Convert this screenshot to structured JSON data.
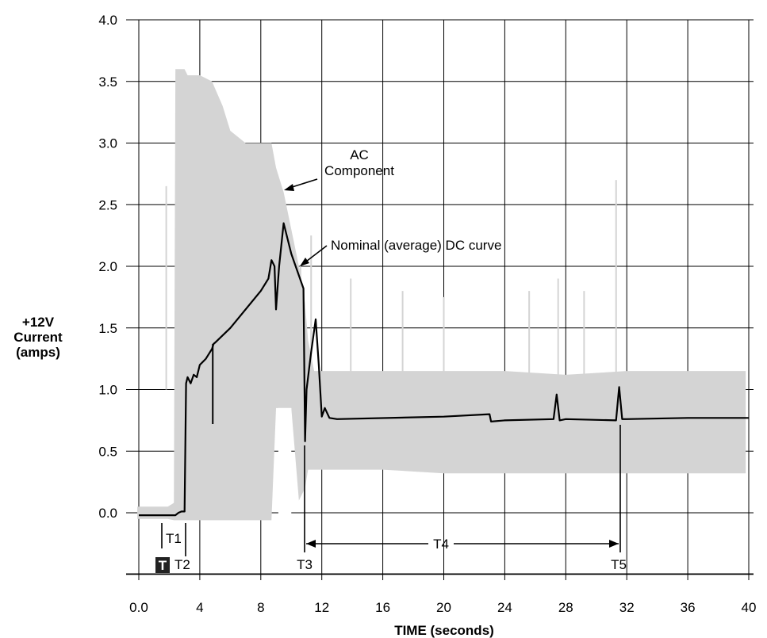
{
  "chart_data": {
    "type": "line",
    "xlabel": "TIME (seconds)",
    "ylabel": [
      "+12V",
      "Current",
      "(amps)"
    ],
    "xlim": [
      0,
      40
    ],
    "ylim": [
      -0.5,
      4.0
    ],
    "grid": true,
    "x_ticks": [
      {
        "value": 0,
        "label": "0.0"
      },
      {
        "value": 4,
        "label": "4"
      },
      {
        "value": 8,
        "label": "8"
      },
      {
        "value": 12,
        "label": "12"
      },
      {
        "value": 16,
        "label": "16"
      },
      {
        "value": 20,
        "label": "20"
      },
      {
        "value": 24,
        "label": "24"
      },
      {
        "value": 28,
        "label": "28"
      },
      {
        "value": 32,
        "label": "32"
      },
      {
        "value": 36,
        "label": "36"
      },
      {
        "value": 40,
        "label": "40"
      }
    ],
    "y_ticks": [
      {
        "value": 0.0,
        "label": "0.0"
      },
      {
        "value": 0.5,
        "label": "0.5"
      },
      {
        "value": 1.0,
        "label": "1.0"
      },
      {
        "value": 1.5,
        "label": "1.5"
      },
      {
        "value": 2.0,
        "label": "2.0"
      },
      {
        "value": 2.5,
        "label": "2.5"
      },
      {
        "value": 3.0,
        "label": "3.0"
      },
      {
        "value": 3.5,
        "label": "3.5"
      },
      {
        "value": 4.0,
        "label": "4.0"
      }
    ],
    "series": [
      {
        "name": "AC Component",
        "style": "band",
        "color": "#d4d4d4",
        "x": [
          -0.1,
          1.6,
          1.9,
          2.3,
          2.4,
          3.0,
          3.2,
          4.0,
          4.8,
          5.5,
          6.0,
          7.0,
          8.0,
          8.7,
          9.0,
          9.5,
          10.0,
          10.5,
          10.9,
          11.1,
          11.5,
          12.0,
          16.0,
          20.0,
          24.0,
          28.0,
          32.0,
          36.0,
          39.8
        ],
        "upper": [
          0.05,
          0.05,
          0.05,
          0.08,
          3.6,
          3.6,
          3.55,
          3.55,
          3.5,
          3.3,
          3.1,
          3.0,
          3.0,
          3.0,
          2.8,
          2.6,
          2.3,
          2.0,
          1.7,
          1.4,
          1.15,
          1.15,
          1.15,
          1.15,
          1.15,
          1.12,
          1.15,
          1.15,
          1.15
        ],
        "lower": [
          -0.05,
          -0.05,
          -0.05,
          -0.06,
          -0.06,
          -0.06,
          -0.06,
          -0.06,
          -0.06,
          -0.06,
          -0.06,
          -0.06,
          -0.06,
          -0.06,
          0.85,
          0.85,
          0.85,
          0.1,
          0.2,
          0.35,
          0.35,
          0.35,
          0.35,
          0.32,
          0.32,
          0.32,
          0.32,
          0.32,
          0.32
        ]
      },
      {
        "name": "Nominal (average) DC curve",
        "style": "line",
        "color": "#000000",
        "x": [
          0.0,
          2.4,
          2.6,
          2.8,
          3.0,
          3.1,
          3.2,
          3.4,
          3.6,
          3.8,
          4.0,
          4.4,
          4.8,
          4.9,
          5.0,
          6.0,
          7.0,
          8.0,
          8.5,
          8.7,
          8.9,
          9.0,
          9.2,
          9.5,
          10.0,
          10.8,
          10.9,
          11.0,
          11.3,
          11.6,
          11.8,
          12.0,
          12.2,
          12.5,
          13.0,
          20.0,
          23.0,
          23.1,
          24.0,
          27.2,
          27.4,
          27.6,
          28.0,
          31.3,
          31.5,
          31.7,
          32.0,
          36.0,
          40.0
        ],
        "y": [
          -0.02,
          -0.02,
          0.0,
          0.01,
          0.01,
          1.05,
          1.1,
          1.05,
          1.12,
          1.1,
          1.2,
          1.25,
          1.33,
          1.37,
          1.38,
          1.5,
          1.65,
          1.8,
          1.9,
          2.05,
          2.0,
          1.65,
          2.0,
          2.35,
          2.1,
          1.82,
          0.58,
          1.0,
          1.3,
          1.57,
          1.2,
          0.78,
          0.85,
          0.77,
          0.76,
          0.78,
          0.8,
          0.74,
          0.75,
          0.76,
          0.96,
          0.75,
          0.76,
          0.75,
          1.02,
          0.76,
          0.76,
          0.77,
          0.77
        ]
      }
    ],
    "annotations": {
      "ac_label_line1": "AC",
      "ac_label_line2": "Component",
      "dc_label": "Nominal (average) DC curve",
      "T1": "T1",
      "T2": "T2",
      "T3": "T3",
      "T4": "T4",
      "T5": "T5",
      "T_badge": "T"
    }
  }
}
